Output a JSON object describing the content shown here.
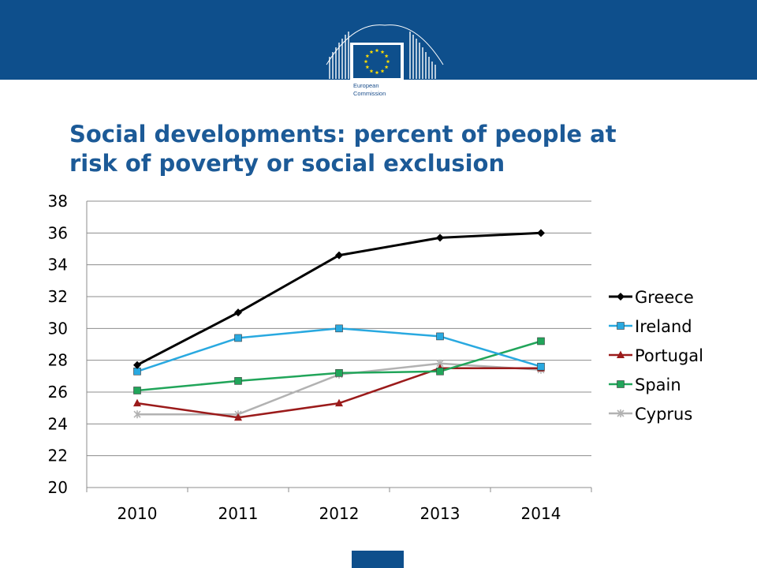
{
  "header": {
    "logo_text_1": "European",
    "logo_text_2": "Commission"
  },
  "slide": {
    "title_line_1": "Social developments: percent of people at",
    "title_line_2": "risk of poverty or social exclusion"
  },
  "chart_data": {
    "type": "line",
    "title": "",
    "xlabel": "",
    "ylabel": "",
    "categories": [
      "2010",
      "2011",
      "2012",
      "2013",
      "2014"
    ],
    "ylim": [
      20,
      38
    ],
    "yticks": [
      20,
      22,
      24,
      26,
      28,
      30,
      32,
      34,
      36,
      38
    ],
    "grid": true,
    "legend": "right",
    "series": [
      {
        "name": "Greece",
        "values": [
          27.7,
          31.0,
          34.6,
          35.7,
          36.0
        ],
        "color": "#000000",
        "marker": "diamond"
      },
      {
        "name": "Ireland",
        "values": [
          27.3,
          29.4,
          30.0,
          29.5,
          27.6
        ],
        "color": "#29a9e0",
        "marker": "square"
      },
      {
        "name": "Portugal",
        "values": [
          25.3,
          24.4,
          25.3,
          27.5,
          27.5
        ],
        "color": "#9b1b1b",
        "marker": "triangle"
      },
      {
        "name": "Spain",
        "values": [
          26.1,
          26.7,
          27.2,
          27.3,
          29.2
        ],
        "color": "#21a55a",
        "marker": "square"
      },
      {
        "name": "Cyprus",
        "values": [
          24.6,
          24.6,
          27.1,
          27.8,
          27.4
        ],
        "color": "#b2b2b2",
        "marker": "x"
      }
    ]
  }
}
